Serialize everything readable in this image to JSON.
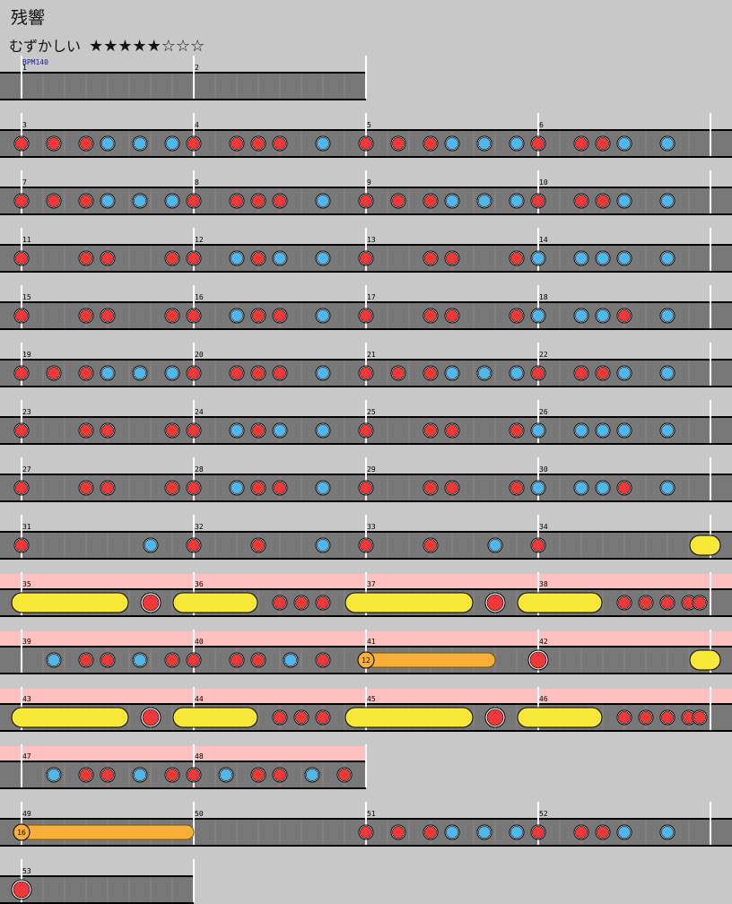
{
  "song": {
    "title": "残響",
    "difficulty_label": "むずかしい",
    "difficulty_stars": "★★★★★☆☆☆",
    "stars_filled": 5,
    "stars_total": 8
  },
  "chart_data": {
    "type": "taiko-note-chart",
    "bpm_label": "BPM140",
    "beats_per_measure": 4,
    "measures_per_row": 4,
    "note_types": {
      "don": "red",
      "ka": "blue",
      "don_big": "red-large",
      "drumroll": "yellow",
      "balloon": "orange"
    },
    "colors": {
      "lane": "#787878",
      "background": "#c8c8c8",
      "don": "#f03838",
      "ka": "#50b8f0",
      "drumroll": "#f8e838",
      "balloon": "#f8b038",
      "gogo_band": "#ffc0c0",
      "measure_line": "#ffffff"
    },
    "rows": [
      {
        "start_measure": 1,
        "measures": 2,
        "gogo": [],
        "notes": []
      },
      {
        "start_measure": 3,
        "measures": 4,
        "gogo": [],
        "notes": [
          {
            "t": "don",
            "b": 0
          },
          {
            "t": "don",
            "b": 0.75
          },
          {
            "t": "don",
            "b": 1.5
          },
          {
            "t": "ka",
            "b": 2
          },
          {
            "t": "ka",
            "b": 2.75
          },
          {
            "t": "ka",
            "b": 3.5
          },
          {
            "t": "don",
            "b": 4
          },
          {
            "t": "don",
            "b": 5
          },
          {
            "t": "don",
            "b": 5.5
          },
          {
            "t": "don",
            "b": 6
          },
          {
            "t": "ka",
            "b": 7
          },
          {
            "t": "don",
            "b": 8
          },
          {
            "t": "don",
            "b": 8.75
          },
          {
            "t": "don",
            "b": 9.5
          },
          {
            "t": "ka",
            "b": 10
          },
          {
            "t": "ka",
            "b": 10.75
          },
          {
            "t": "ka",
            "b": 11.5
          },
          {
            "t": "don",
            "b": 12
          },
          {
            "t": "don",
            "b": 13
          },
          {
            "t": "don",
            "b": 13.5
          },
          {
            "t": "ka",
            "b": 14
          },
          {
            "t": "ka",
            "b": 15
          }
        ]
      },
      {
        "start_measure": 7,
        "measures": 4,
        "gogo": [],
        "notes": [
          {
            "t": "don",
            "b": 0
          },
          {
            "t": "don",
            "b": 0.75
          },
          {
            "t": "don",
            "b": 1.5
          },
          {
            "t": "ka",
            "b": 2
          },
          {
            "t": "ka",
            "b": 2.75
          },
          {
            "t": "ka",
            "b": 3.5
          },
          {
            "t": "don",
            "b": 4
          },
          {
            "t": "don",
            "b": 5
          },
          {
            "t": "don",
            "b": 5.5
          },
          {
            "t": "don",
            "b": 6
          },
          {
            "t": "ka",
            "b": 7
          },
          {
            "t": "don",
            "b": 8
          },
          {
            "t": "don",
            "b": 8.75
          },
          {
            "t": "don",
            "b": 9.5
          },
          {
            "t": "ka",
            "b": 10
          },
          {
            "t": "ka",
            "b": 10.75
          },
          {
            "t": "ka",
            "b": 11.5
          },
          {
            "t": "don",
            "b": 12
          },
          {
            "t": "don",
            "b": 13
          },
          {
            "t": "don",
            "b": 13.5
          },
          {
            "t": "ka",
            "b": 14
          },
          {
            "t": "ka",
            "b": 15
          }
        ]
      },
      {
        "start_measure": 11,
        "measures": 4,
        "gogo": [],
        "notes": [
          {
            "t": "don",
            "b": 0
          },
          {
            "t": "don",
            "b": 1.5
          },
          {
            "t": "don",
            "b": 2
          },
          {
            "t": "don",
            "b": 3.5
          },
          {
            "t": "don",
            "b": 4
          },
          {
            "t": "ka",
            "b": 5
          },
          {
            "t": "don",
            "b": 5.5
          },
          {
            "t": "ka",
            "b": 6
          },
          {
            "t": "ka",
            "b": 7
          },
          {
            "t": "don",
            "b": 8
          },
          {
            "t": "don",
            "b": 9.5
          },
          {
            "t": "don",
            "b": 10
          },
          {
            "t": "don",
            "b": 11.5
          },
          {
            "t": "ka",
            "b": 12
          },
          {
            "t": "ka",
            "b": 13
          },
          {
            "t": "ka",
            "b": 13.5
          },
          {
            "t": "ka",
            "b": 14
          },
          {
            "t": "ka",
            "b": 15
          }
        ]
      },
      {
        "start_measure": 15,
        "measures": 4,
        "gogo": [],
        "notes": [
          {
            "t": "don",
            "b": 0
          },
          {
            "t": "don",
            "b": 1.5
          },
          {
            "t": "don",
            "b": 2
          },
          {
            "t": "don",
            "b": 3.5
          },
          {
            "t": "don",
            "b": 4
          },
          {
            "t": "ka",
            "b": 5
          },
          {
            "t": "don",
            "b": 5.5
          },
          {
            "t": "don",
            "b": 6
          },
          {
            "t": "ka",
            "b": 7
          },
          {
            "t": "don",
            "b": 8
          },
          {
            "t": "don",
            "b": 9.5
          },
          {
            "t": "don",
            "b": 10
          },
          {
            "t": "don",
            "b": 11.5
          },
          {
            "t": "ka",
            "b": 12
          },
          {
            "t": "ka",
            "b": 13
          },
          {
            "t": "ka",
            "b": 13.5
          },
          {
            "t": "don",
            "b": 14
          },
          {
            "t": "ka",
            "b": 15
          }
        ]
      },
      {
        "start_measure": 19,
        "measures": 4,
        "gogo": [],
        "notes": [
          {
            "t": "don",
            "b": 0
          },
          {
            "t": "don",
            "b": 0.75
          },
          {
            "t": "don",
            "b": 1.5
          },
          {
            "t": "ka",
            "b": 2
          },
          {
            "t": "ka",
            "b": 2.75
          },
          {
            "t": "ka",
            "b": 3.5
          },
          {
            "t": "don",
            "b": 4
          },
          {
            "t": "don",
            "b": 5
          },
          {
            "t": "don",
            "b": 5.5
          },
          {
            "t": "don",
            "b": 6
          },
          {
            "t": "ka",
            "b": 7
          },
          {
            "t": "don",
            "b": 8
          },
          {
            "t": "don",
            "b": 8.75
          },
          {
            "t": "don",
            "b": 9.5
          },
          {
            "t": "ka",
            "b": 10
          },
          {
            "t": "ka",
            "b": 10.75
          },
          {
            "t": "ka",
            "b": 11.5
          },
          {
            "t": "don",
            "b": 12
          },
          {
            "t": "don",
            "b": 13
          },
          {
            "t": "don",
            "b": 13.5
          },
          {
            "t": "ka",
            "b": 14
          },
          {
            "t": "ka",
            "b": 15
          }
        ]
      },
      {
        "start_measure": 23,
        "measures": 4,
        "gogo": [],
        "notes": [
          {
            "t": "don",
            "b": 0
          },
          {
            "t": "don",
            "b": 1.5
          },
          {
            "t": "don",
            "b": 2
          },
          {
            "t": "don",
            "b": 3.5
          },
          {
            "t": "don",
            "b": 4
          },
          {
            "t": "ka",
            "b": 5
          },
          {
            "t": "don",
            "b": 5.5
          },
          {
            "t": "ka",
            "b": 6
          },
          {
            "t": "ka",
            "b": 7
          },
          {
            "t": "don",
            "b": 8
          },
          {
            "t": "don",
            "b": 9.5
          },
          {
            "t": "don",
            "b": 10
          },
          {
            "t": "don",
            "b": 11.5
          },
          {
            "t": "ka",
            "b": 12
          },
          {
            "t": "ka",
            "b": 13
          },
          {
            "t": "ka",
            "b": 13.5
          },
          {
            "t": "ka",
            "b": 14
          },
          {
            "t": "ka",
            "b": 15
          }
        ]
      },
      {
        "start_measure": 27,
        "measures": 4,
        "gogo": [],
        "notes": [
          {
            "t": "don",
            "b": 0
          },
          {
            "t": "don",
            "b": 1.5
          },
          {
            "t": "don",
            "b": 2
          },
          {
            "t": "don",
            "b": 3.5
          },
          {
            "t": "don",
            "b": 4
          },
          {
            "t": "ka",
            "b": 5
          },
          {
            "t": "don",
            "b": 5.5
          },
          {
            "t": "don",
            "b": 6
          },
          {
            "t": "ka",
            "b": 7
          },
          {
            "t": "don",
            "b": 8
          },
          {
            "t": "don",
            "b": 9.5
          },
          {
            "t": "don",
            "b": 10
          },
          {
            "t": "don",
            "b": 11.5
          },
          {
            "t": "ka",
            "b": 12
          },
          {
            "t": "ka",
            "b": 13
          },
          {
            "t": "ka",
            "b": 13.5
          },
          {
            "t": "don",
            "b": 14
          },
          {
            "t": "ka",
            "b": 15
          }
        ]
      },
      {
        "start_measure": 31,
        "measures": 4,
        "gogo": [
          [
            16.75,
            17.5
          ]
        ],
        "notes": [
          {
            "t": "don",
            "b": 0
          },
          {
            "t": "ka",
            "b": 3
          },
          {
            "t": "don",
            "b": 4
          },
          {
            "t": "don",
            "b": 5.5
          },
          {
            "t": "ka",
            "b": 7
          },
          {
            "t": "don",
            "b": 8
          },
          {
            "t": "don",
            "b": 9.5
          },
          {
            "t": "ka",
            "b": 11
          },
          {
            "t": "don",
            "b": 12
          },
          {
            "t": "roll",
            "b": 15.75,
            "e": 16
          }
        ]
      },
      {
        "start_measure": 35,
        "measures": 4,
        "gogo": [
          [
            -0.5,
            17.5
          ]
        ],
        "notes": [
          {
            "t": "roll",
            "b": 0,
            "e": 2.25
          },
          {
            "t": "donbig",
            "b": 3
          },
          {
            "t": "roll",
            "b": 3.75,
            "e": 5.25
          },
          {
            "t": "don",
            "b": 6
          },
          {
            "t": "don",
            "b": 6.5
          },
          {
            "t": "don",
            "b": 7
          },
          {
            "t": "roll",
            "b": 7.75,
            "e": 10.25
          },
          {
            "t": "donbig",
            "b": 11
          },
          {
            "t": "roll",
            "b": 11.75,
            "e": 13.25
          },
          {
            "t": "don",
            "b": 14
          },
          {
            "t": "don",
            "b": 14.5
          },
          {
            "t": "don",
            "b": 15
          },
          {
            "t": "don",
            "b": 15.5
          },
          {
            "t": "don",
            "b": 15.75
          }
        ]
      },
      {
        "start_measure": 39,
        "measures": 4,
        "gogo": [
          [
            -0.5,
            17.5
          ]
        ],
        "notes": [
          {
            "t": "ka",
            "b": 0.75
          },
          {
            "t": "don",
            "b": 1.5
          },
          {
            "t": "don",
            "b": 2
          },
          {
            "t": "ka",
            "b": 2.75
          },
          {
            "t": "don",
            "b": 3.5
          },
          {
            "t": "don",
            "b": 4
          },
          {
            "t": "don",
            "b": 5
          },
          {
            "t": "don",
            "b": 5.5
          },
          {
            "t": "ka",
            "b": 6.25
          },
          {
            "t": "don",
            "b": 7
          },
          {
            "t": "balloon",
            "b": 8,
            "e": 11,
            "count": "12"
          },
          {
            "t": "donbig",
            "b": 12
          },
          {
            "t": "roll",
            "b": 15.75,
            "e": 16
          }
        ]
      },
      {
        "start_measure": 43,
        "measures": 4,
        "gogo": [
          [
            -0.5,
            17.5
          ]
        ],
        "notes": [
          {
            "t": "roll",
            "b": 0,
            "e": 2.25
          },
          {
            "t": "donbig",
            "b": 3
          },
          {
            "t": "roll",
            "b": 3.75,
            "e": 5.25
          },
          {
            "t": "don",
            "b": 6
          },
          {
            "t": "don",
            "b": 6.5
          },
          {
            "t": "don",
            "b": 7
          },
          {
            "t": "roll",
            "b": 7.75,
            "e": 10.25
          },
          {
            "t": "donbig",
            "b": 11
          },
          {
            "t": "roll",
            "b": 11.75,
            "e": 13.25
          },
          {
            "t": "don",
            "b": 14
          },
          {
            "t": "don",
            "b": 14.5
          },
          {
            "t": "don",
            "b": 15
          },
          {
            "t": "don",
            "b": 15.5
          },
          {
            "t": "don",
            "b": 15.75
          }
        ]
      },
      {
        "start_measure": 47,
        "measures": 2,
        "gogo": [
          [
            -0.5,
            8
          ]
        ],
        "notes": [
          {
            "t": "ka",
            "b": 0.75
          },
          {
            "t": "don",
            "b": 1.5
          },
          {
            "t": "don",
            "b": 2
          },
          {
            "t": "ka",
            "b": 2.75
          },
          {
            "t": "don",
            "b": 3.5
          },
          {
            "t": "don",
            "b": 4
          },
          {
            "t": "ka",
            "b": 4.75
          },
          {
            "t": "don",
            "b": 5.5
          },
          {
            "t": "don",
            "b": 6
          },
          {
            "t": "ka",
            "b": 6.75
          },
          {
            "t": "don",
            "b": 7.5
          }
        ]
      },
      {
        "start_measure": 49,
        "measures": 4,
        "gogo": [],
        "notes": [
          {
            "t": "balloon",
            "b": 0,
            "e": 4,
            "count": "16"
          },
          {
            "t": "don",
            "b": 8
          },
          {
            "t": "don",
            "b": 8.75
          },
          {
            "t": "don",
            "b": 9.5
          },
          {
            "t": "ka",
            "b": 10
          },
          {
            "t": "ka",
            "b": 10.75
          },
          {
            "t": "ka",
            "b": 11.5
          },
          {
            "t": "don",
            "b": 12
          },
          {
            "t": "don",
            "b": 13
          },
          {
            "t": "don",
            "b": 13.5
          },
          {
            "t": "ka",
            "b": 14
          },
          {
            "t": "ka",
            "b": 15
          }
        ]
      },
      {
        "start_measure": 53,
        "measures": 1,
        "gogo": [],
        "notes": [
          {
            "t": "donbig",
            "b": 0
          }
        ]
      }
    ]
  }
}
